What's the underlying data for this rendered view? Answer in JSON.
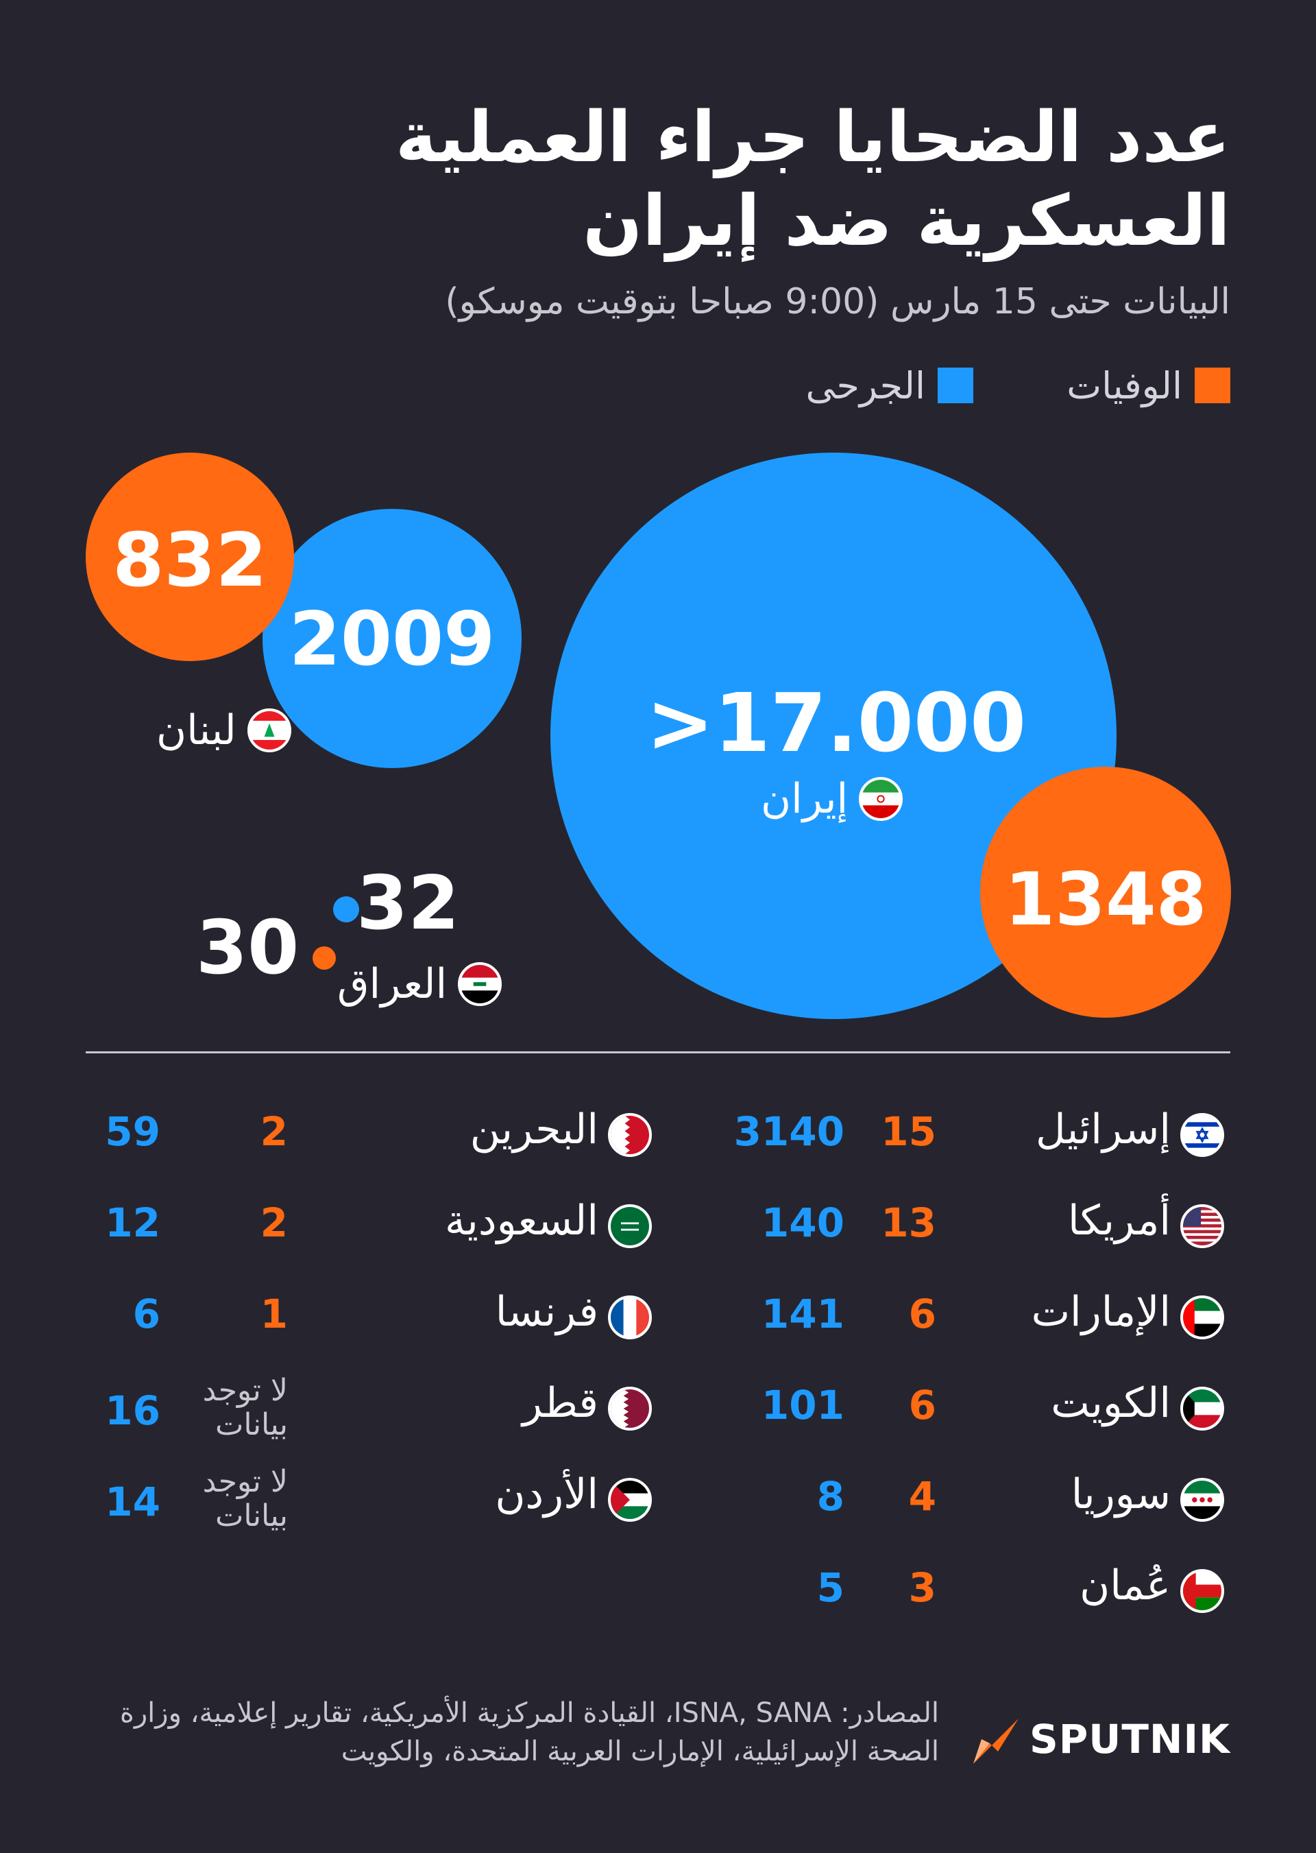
{
  "header": {
    "title": "عدد الضحايا جراء العملية\nالعسكرية ضد إيران",
    "subtitle": "البيانات حتى 15 مارس (9:00 صباحا بتوقيت موسكو)"
  },
  "legend": {
    "deaths_label": "الوفيات",
    "injured_label": "الجرحى"
  },
  "colors": {
    "deaths": "#ff6a13",
    "injured": "#1e9aff",
    "background": "#26252f"
  },
  "chart_data": {
    "type": "bubble",
    "series": [
      {
        "name": "الوفيات"
      },
      {
        "name": "الجرحى"
      }
    ],
    "featured": [
      {
        "country": "إيران",
        "deaths_label": "1348",
        "injured_label": ">17.000",
        "deaths": 1348,
        "injured": 17000
      },
      {
        "country": "لبنان",
        "deaths_label": "832",
        "injured_label": "2009",
        "deaths": 832,
        "injured": 2009
      },
      {
        "country": "العراق",
        "deaths_label": "30",
        "injured_label": "32",
        "deaths": 30,
        "injured": 32
      }
    ],
    "table_right": [
      {
        "country": "إسرائيل",
        "flag": "israel-flag-icon",
        "deaths": "15",
        "injured": "3140"
      },
      {
        "country": "أمريكا",
        "flag": "usa-flag-icon",
        "deaths": "13",
        "injured": "140"
      },
      {
        "country": "الإمارات",
        "flag": "uae-flag-icon",
        "deaths": "6",
        "injured": "141"
      },
      {
        "country": "الكويت",
        "flag": "kuwait-flag-icon",
        "deaths": "6",
        "injured": "101"
      },
      {
        "country": "سوريا",
        "flag": "syria-flag-icon",
        "deaths": "4",
        "injured": "8"
      },
      {
        "country": "عُمان",
        "flag": "oman-flag-icon",
        "deaths": "3",
        "injured": "5"
      }
    ],
    "table_left": [
      {
        "country": "البحرين",
        "flag": "bahrain-flag-icon",
        "deaths": "2",
        "injured": "59"
      },
      {
        "country": "السعودية",
        "flag": "saudi-flag-icon",
        "deaths": "2",
        "injured": "12"
      },
      {
        "country": "فرنسا",
        "flag": "france-flag-icon",
        "deaths": "1",
        "injured": "6"
      },
      {
        "country": "قطر",
        "flag": "qatar-flag-icon",
        "deaths": "",
        "deaths_note": "لا توجد\nبيانات",
        "injured": "16"
      },
      {
        "country": "الأردن",
        "flag": "jordan-flag-icon",
        "deaths": "",
        "deaths_note": "لا توجد\nبيانات",
        "injured": "14"
      }
    ]
  },
  "footer": {
    "source": "المصادر: ISNA, SANA، القيادة المركزية الأمريكية، تقارير إعلامية، وزارة الصحة الإسرائيلية، الإمارات العربية المتحدة، والكويت",
    "brand": "SPUTNIK"
  }
}
